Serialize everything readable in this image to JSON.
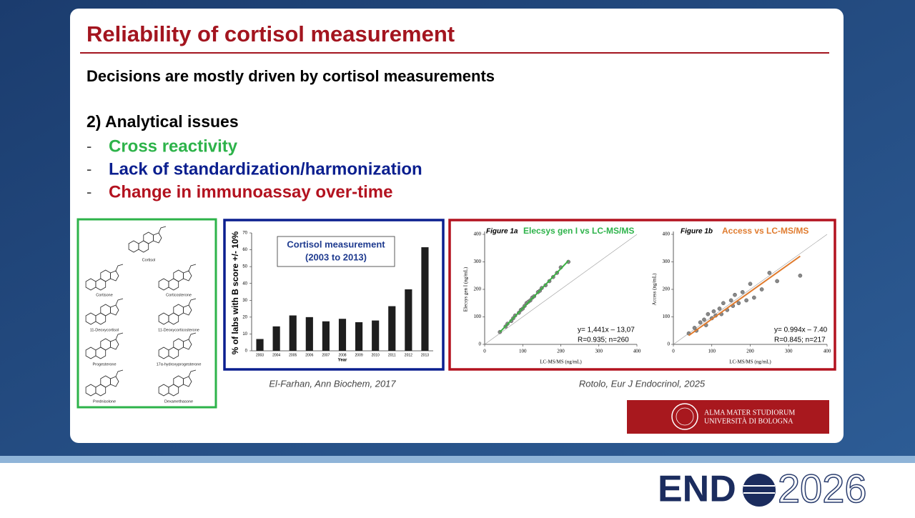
{
  "header": {
    "title": "Reliability of cortisol measurement"
  },
  "body": {
    "lead": "Decisions are mostly driven by cortisol measurements",
    "section": "2) Analytical issues",
    "bullets": [
      {
        "marker": "-",
        "text": "Cross reactivity",
        "color": "#2db34a"
      },
      {
        "marker": "-",
        "text": "Lack of standardization/harmonization",
        "color": "#0b1f8f"
      },
      {
        "marker": "-",
        "text": "Change in immunoassay over-time",
        "color": "#b3121f"
      }
    ]
  },
  "structures": {
    "labels": [
      "Cortisol",
      "Cortisone",
      "Corticosterone",
      "11-Deoxycortisol",
      "11-Deoxycorticosterone",
      "Progesterone",
      "17α-hydroxyprogesterone",
      "Prednisolone",
      "Dexamethasone"
    ]
  },
  "chart_data": [
    {
      "type": "bar",
      "annotation": [
        "Cortisol measurement",
        "(2003 to 2013)"
      ],
      "y_label": "% of labs with B score +/- 10%",
      "x_label": "Year",
      "categories": [
        "2003",
        "2004",
        "2005",
        "2006",
        "2007",
        "2008",
        "2009",
        "2010",
        "2011",
        "2012",
        "2013"
      ],
      "values": [
        7,
        14.5,
        21,
        20,
        17.5,
        19,
        17,
        18,
        26.5,
        36.5,
        61.5
      ],
      "color": "#1e1e1e",
      "ylim": [
        0,
        70
      ],
      "yticks": [
        0,
        10,
        20,
        30,
        40,
        50,
        60,
        70
      ]
    },
    {
      "type": "scatter",
      "figure_label": "Figure 1a",
      "title": "Elecsys gen I vs LC-MS/MS",
      "title_color": "#2db34a",
      "x_label": "LC-MS/MS (ng/mL)",
      "y_label": "Elecsys gen I (ng/mL)",
      "xlim": [
        0,
        400
      ],
      "ylim": [
        0,
        400
      ],
      "xticks": [
        0,
        100,
        200,
        300,
        400
      ],
      "yticks": [
        0,
        100,
        200,
        300,
        400
      ],
      "x": [
        40,
        55,
        60,
        70,
        75,
        80,
        90,
        95,
        100,
        105,
        110,
        115,
        120,
        125,
        130,
        140,
        145,
        150,
        160,
        170,
        180,
        190,
        200,
        220
      ],
      "y": [
        45,
        65,
        75,
        85,
        95,
        105,
        115,
        125,
        130,
        140,
        150,
        155,
        160,
        170,
        175,
        190,
        195,
        205,
        215,
        230,
        245,
        260,
        280,
        300
      ],
      "color": "#3cb043",
      "fit": {
        "slope": 1.441,
        "intercept": -13.07
      },
      "equation": [
        "y= 1,441x – 13,07",
        "R=0.935; n=260"
      ]
    },
    {
      "type": "scatter",
      "figure_label": "Figure 1b",
      "title": "Access vs LC-MS/MS",
      "title_color": "#e07b2e",
      "x_label": "LC-MS/MS (ng/mL)",
      "y_label": "Access (ng/mL)",
      "xlim": [
        0,
        400
      ],
      "ylim": [
        0,
        400
      ],
      "xticks": [
        0,
        100,
        200,
        300,
        400
      ],
      "yticks": [
        0,
        100,
        200,
        300,
        400
      ],
      "x": [
        40,
        55,
        60,
        70,
        80,
        85,
        90,
        100,
        105,
        110,
        120,
        125,
        130,
        140,
        150,
        155,
        160,
        170,
        180,
        190,
        200,
        210,
        230,
        250,
        270,
        330
      ],
      "y": [
        40,
        60,
        50,
        80,
        90,
        70,
        110,
        95,
        120,
        105,
        130,
        110,
        150,
        125,
        160,
        140,
        180,
        150,
        190,
        160,
        220,
        170,
        200,
        260,
        230,
        250
      ],
      "color": "#e07b2e",
      "fit": {
        "slope": 0.994,
        "intercept": -7.4
      },
      "equation": [
        "y= 0.994x – 7.40",
        "R=0.845; n=217"
      ]
    }
  ],
  "captions": [
    "El-Farhan, Ann Biochem, 2017",
    "Rotolo, Eur J Endocrinol, 2025"
  ],
  "logo": {
    "line1": "ALMA MATER STUDIORUM",
    "line2": "UNIVERSITÀ DI BOLOGNA"
  },
  "footer": {
    "brand": "END",
    "year": "2026"
  }
}
